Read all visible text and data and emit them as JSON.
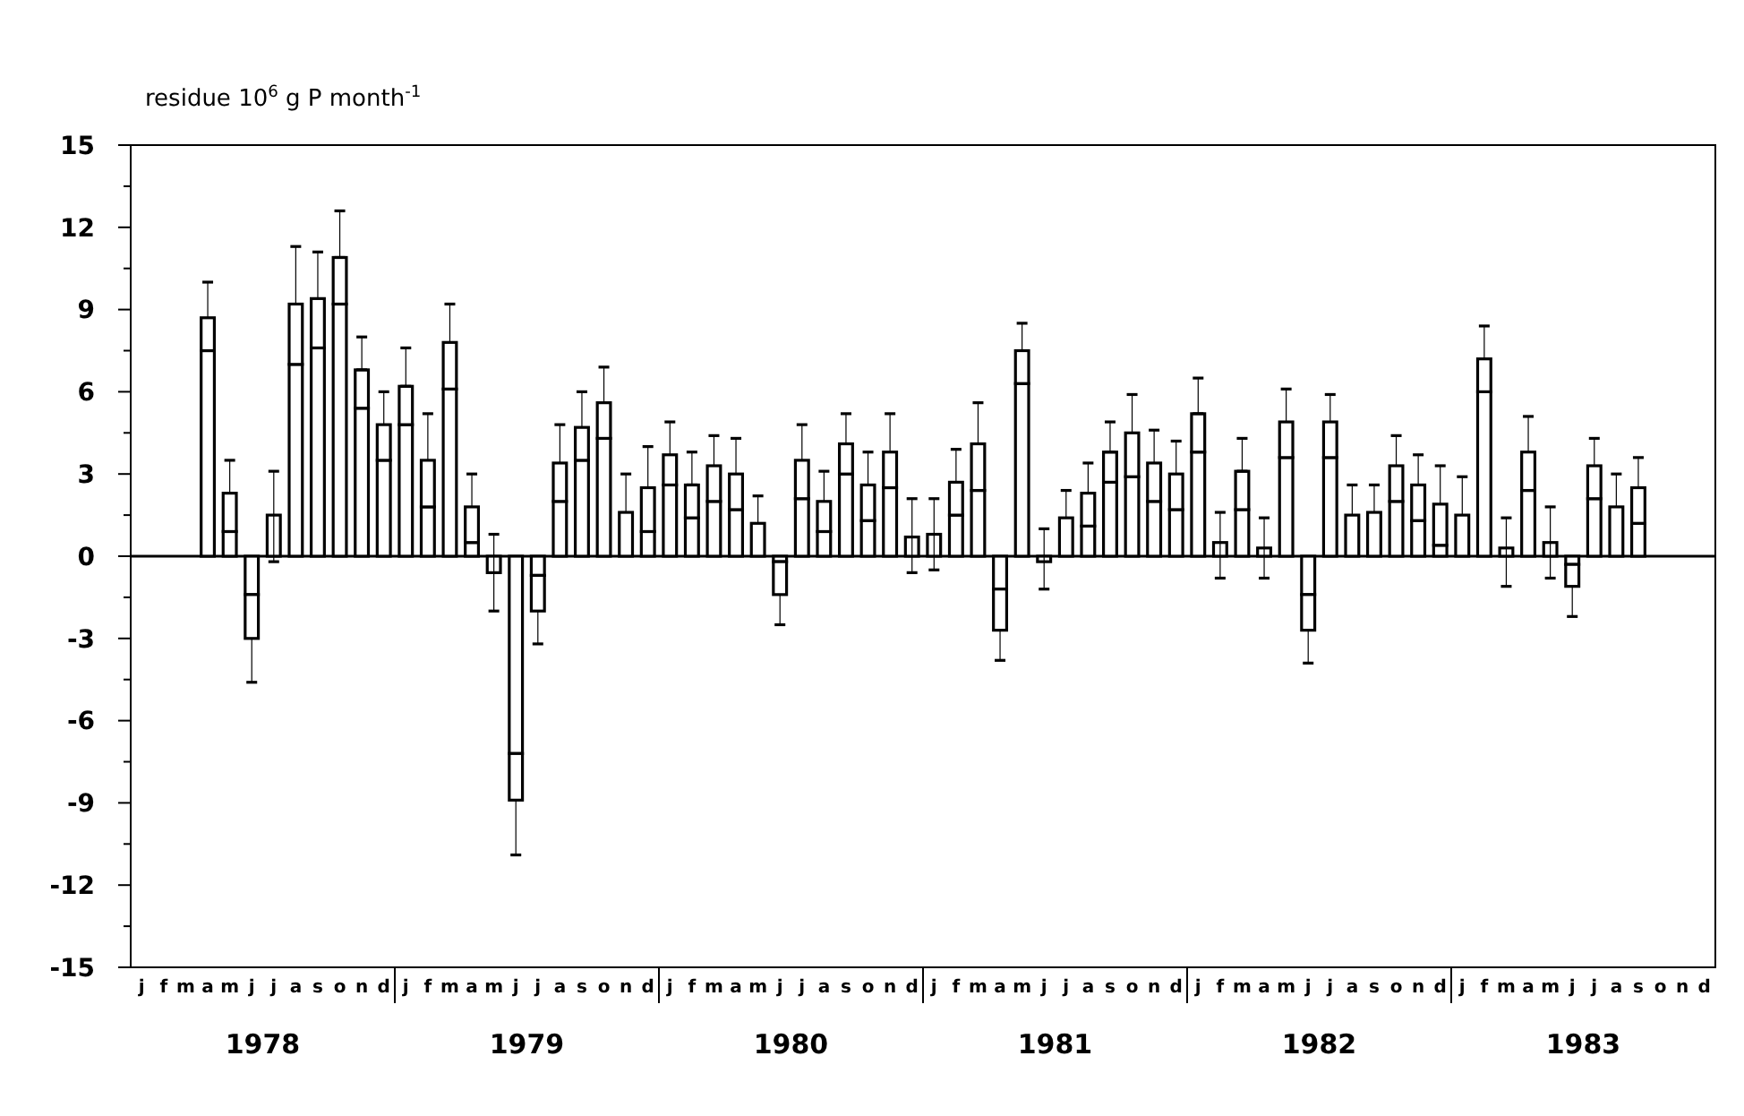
{
  "chart_data": {
    "type": "bar",
    "stacked": true,
    "ylabel": "residue 10$^{6}$  g P month$^{-1}$",
    "categories": [
      "j",
      "f",
      "m",
      "a",
      "m",
      "j",
      "j",
      "a",
      "s",
      "o",
      "n",
      "d",
      "j",
      "f",
      "m",
      "a",
      "m",
      "j",
      "j",
      "a",
      "s",
      "o",
      "n",
      "d",
      "j",
      "f",
      "m",
      "a",
      "m",
      "j",
      "j",
      "a",
      "s",
      "o",
      "n",
      "d",
      "j",
      "f",
      "m",
      "a",
      "m",
      "j",
      "j",
      "a",
      "s",
      "o",
      "n",
      "d",
      "j",
      "f",
      "m",
      "a",
      "m",
      "j",
      "j",
      "a",
      "s",
      "o",
      "n",
      "d",
      "j",
      "f",
      "m",
      "a",
      "m",
      "j",
      "j",
      "a",
      "s",
      "o",
      "n",
      "d"
    ],
    "annotations": [
      "1978",
      "1979",
      "1980",
      "1981",
      "1982",
      "1983"
    ],
    "ylim": [
      -15,
      15
    ],
    "yticks": [
      -15,
      {
        "value": -13.5,
        "label": null
      },
      -12,
      {
        "value": -10.5,
        "label": null
      },
      -9,
      {
        "value": -7.5,
        "label": null
      },
      -6,
      {
        "value": -4.5,
        "label": null
      },
      -3,
      {
        "value": -1.5,
        "label": null
      },
      0,
      {
        "value": 1.5,
        "label": null
      },
      3,
      {
        "value": 4.5,
        "label": null
      },
      6,
      {
        "value": 7.5,
        "label": null
      },
      9,
      {
        "value": 10.5,
        "label": null
      },
      12,
      {
        "value": 13.5,
        "label": null
      },
      15
    ],
    "series": [
      {
        "color": "#000000",
        "values": [
          null,
          null,
          null,
          7.5,
          0.9,
          -1.4,
          1.5,
          7.0,
          7.6,
          9.2,
          5.4,
          3.5,
          4.8,
          1.8,
          6.1,
          0.5,
          -0.6,
          -7.2,
          -0.7,
          2.0,
          3.5,
          4.3,
          1.6,
          0.9,
          2.6,
          1.4,
          2.0,
          1.7,
          1.2,
          -0.2,
          2.1,
          0.9,
          3.0,
          1.3,
          2.5,
          0.7,
          0.8,
          1.5,
          2.4,
          -1.2,
          6.3,
          -0.2,
          1.4,
          1.1,
          2.7,
          2.9,
          2.0,
          1.7,
          3.8,
          0.5,
          1.7,
          0.3,
          3.6,
          -1.4,
          3.6,
          1.5,
          1.6,
          2.0,
          1.3,
          0.4,
          1.5,
          6.0,
          0.3,
          2.4,
          0.5,
          -0.3,
          2.1,
          1.8,
          1.2,
          null,
          null,
          null
        ]
      },
      {
        "color": "#000000",
        "values": [
          null,
          null,
          null,
          1.2,
          1.4,
          -1.6,
          0,
          2.2,
          1.8,
          1.7,
          1.4,
          1.3,
          1.4,
          1.7,
          1.7,
          1.3,
          0,
          -1.7,
          -1.3,
          1.4,
          1.2,
          1.3,
          0,
          1.6,
          1.1,
          1.2,
          1.3,
          1.3,
          0,
          -1.2,
          1.4,
          1.1,
          1.1,
          1.3,
          1.3,
          0,
          0,
          1.2,
          1.7,
          -1.5,
          1.2,
          0,
          0,
          1.2,
          1.1,
          1.6,
          1.4,
          1.3,
          1.4,
          0,
          1.4,
          0,
          1.3,
          -1.3,
          1.3,
          0,
          0,
          1.3,
          1.3,
          1.5,
          0,
          1.2,
          0,
          1.4,
          0,
          -0.8,
          1.2,
          0,
          1.3,
          null,
          null,
          null
        ],
        "errors": [
          null,
          null,
          null,
          [
            8.7,
            10.0
          ],
          [
            2.3,
            3.5
          ],
          [
            -4.6,
            -3.0
          ],
          [
            -0.2,
            3.1
          ],
          [
            9.2,
            11.3
          ],
          [
            9.4,
            11.1
          ],
          [
            10.9,
            12.6
          ],
          [
            6.8,
            8.0
          ],
          [
            4.8,
            6.0
          ],
          [
            6.2,
            7.6
          ],
          [
            3.5,
            5.2
          ],
          [
            7.8,
            9.2
          ],
          [
            1.8,
            3.0
          ],
          [
            -2.0,
            0.8
          ],
          [
            -10.9,
            -8.9
          ],
          [
            -3.2,
            -2.0
          ],
          [
            3.4,
            4.8
          ],
          [
            4.7,
            6.0
          ],
          [
            5.6,
            6.9
          ],
          [
            1.6,
            3.0
          ],
          [
            2.5,
            4.0
          ],
          [
            3.7,
            4.9
          ],
          [
            2.6,
            3.8
          ],
          [
            3.3,
            4.4
          ],
          [
            3.0,
            4.3
          ],
          [
            1.2,
            2.2
          ],
          [
            -2.5,
            -1.4
          ],
          [
            3.5,
            4.8
          ],
          [
            2.0,
            3.1
          ],
          [
            4.1,
            5.2
          ],
          [
            2.6,
            3.8
          ],
          [
            3.8,
            5.2
          ],
          [
            -0.6,
            2.1
          ],
          [
            -0.5,
            2.1
          ],
          [
            2.7,
            3.9
          ],
          [
            4.1,
            5.6
          ],
          [
            -3.8,
            -2.7
          ],
          [
            7.5,
            8.5
          ],
          [
            -1.2,
            1.0
          ],
          [
            1.4,
            2.4
          ],
          [
            2.3,
            3.4
          ],
          [
            3.8,
            4.9
          ],
          [
            4.5,
            5.9
          ],
          [
            3.4,
            4.6
          ],
          [
            3.0,
            4.2
          ],
          [
            5.2,
            6.5
          ],
          [
            -0.8,
            1.6
          ],
          [
            3.1,
            4.3
          ],
          [
            -0.8,
            1.4
          ],
          [
            4.9,
            6.1
          ],
          [
            -3.9,
            -2.7
          ],
          [
            4.9,
            5.9
          ],
          [
            1.5,
            2.6
          ],
          [
            1.6,
            2.6
          ],
          [
            3.3,
            4.4
          ],
          [
            2.6,
            3.7
          ],
          [
            1.9,
            3.3
          ],
          [
            1.5,
            2.9
          ],
          [
            7.2,
            8.4
          ],
          [
            -1.1,
            1.4
          ],
          [
            3.8,
            5.1
          ],
          [
            -0.8,
            1.8
          ],
          [
            -2.2,
            -1.1
          ],
          [
            3.3,
            4.3
          ],
          [
            1.8,
            3.0
          ],
          [
            2.5,
            3.6
          ],
          null,
          null,
          null
        ]
      }
    ]
  }
}
